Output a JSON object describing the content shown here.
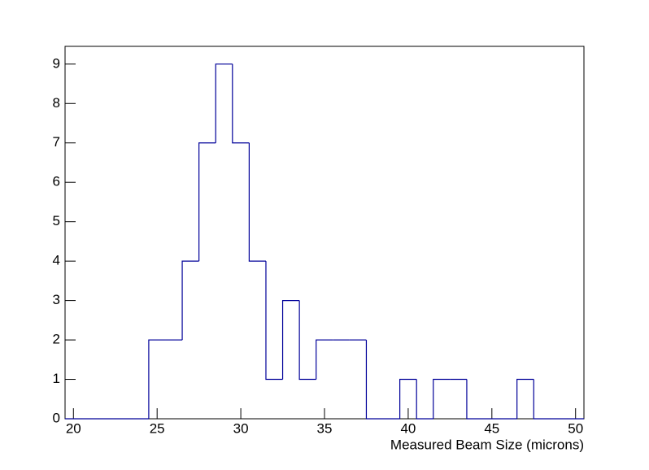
{
  "chart_data": {
    "type": "histogram",
    "x_label": "Measured Beam Size (microns)",
    "bins": [
      19.5,
      20.5,
      21.5,
      22.5,
      23.5,
      24.5,
      25.5,
      26.5,
      27.5,
      28.5,
      29.5,
      30.5,
      31.5,
      32.5,
      33.5,
      34.5,
      35.5,
      36.5,
      37.5,
      38.5,
      39.5,
      40.5,
      41.5,
      42.5,
      43.5,
      44.5,
      45.5,
      46.5,
      47.5,
      48.5,
      49.5,
      50.5
    ],
    "values": [
      0,
      0,
      0,
      0,
      0,
      2,
      2,
      4,
      7,
      9,
      7,
      4,
      1,
      3,
      1,
      2,
      2,
      2,
      0,
      0,
      1,
      0,
      1,
      1,
      0,
      0,
      0,
      1,
      0,
      0,
      0
    ],
    "color": "#000099",
    "xlim": [
      19.5,
      50.5
    ],
    "xticks": [
      20,
      25,
      30,
      35,
      40,
      45,
      50
    ],
    "ylim": [
      0,
      9.45
    ],
    "yticks": [
      0,
      1,
      2,
      3,
      4,
      5,
      6,
      7,
      8,
      9
    ]
  }
}
